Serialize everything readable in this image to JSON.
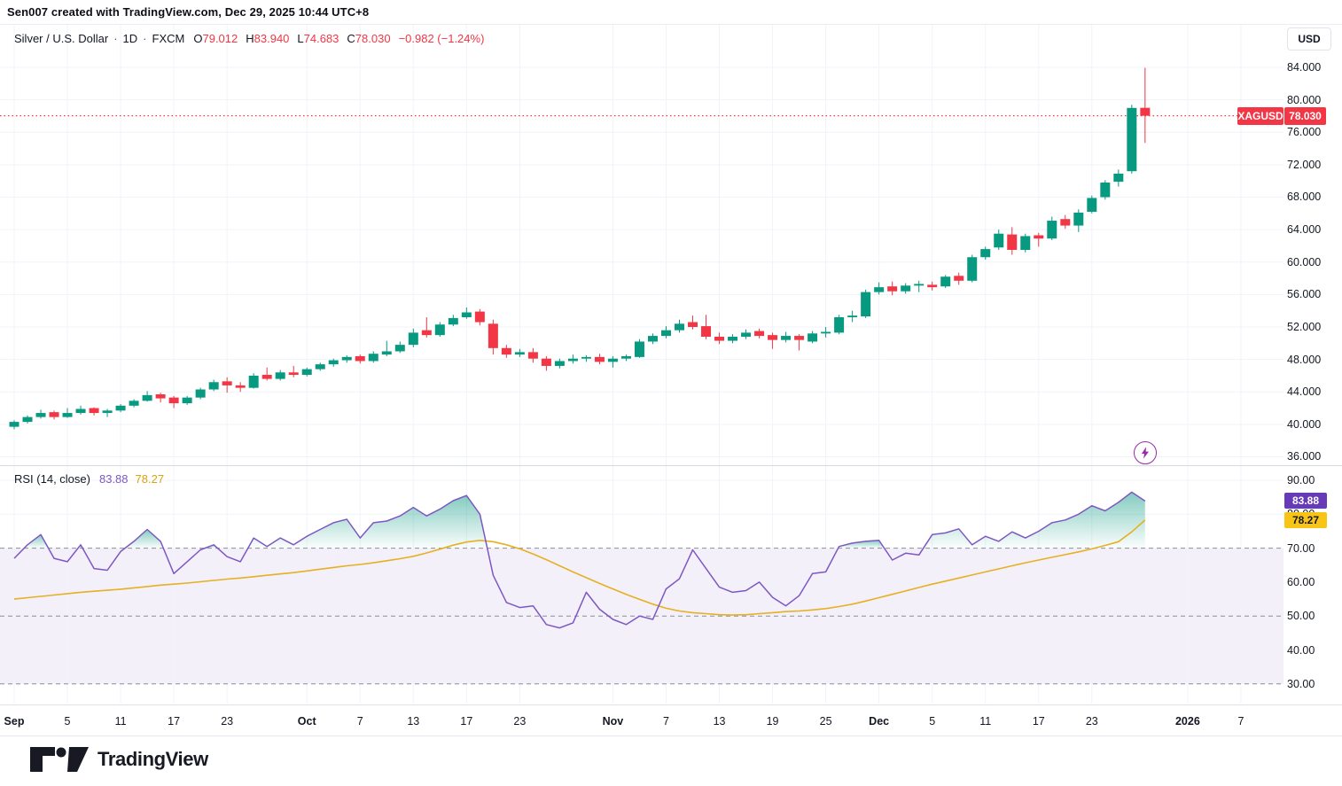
{
  "attribution": "Sen007 created with TradingView.com, Dec 29, 2025 10:44 UTC+8",
  "main_legend": {
    "symbol": "Silver / U.S. Dollar",
    "separator": "·",
    "interval": "1D",
    "exchange": "FXCM",
    "ohlc": [
      {
        "k": "O",
        "v": "79.012"
      },
      {
        "k": "H",
        "v": "83.940"
      },
      {
        "k": "L",
        "v": "74.683"
      },
      {
        "k": "C",
        "v": "78.030"
      }
    ],
    "change": "−0.982 (−1.24%)"
  },
  "currency_button": "USD",
  "price_axis": {
    "labels": [
      "84.000",
      "80.000",
      "76.000",
      "72.000",
      "68.000",
      "64.000",
      "60.000",
      "56.000",
      "52.000",
      "48.000",
      "44.000",
      "40.000",
      "36.000"
    ],
    "badge": {
      "symbol": "XAGUSD",
      "value": "78.030"
    }
  },
  "rsi_legend": {
    "title": "RSI (14, close)",
    "value": "83.88",
    "ma_value": "78.27"
  },
  "rsi_axis": {
    "labels": [
      "90.00",
      "80.00",
      "70.00",
      "60.00",
      "50.00",
      "40.00",
      "30.00"
    ],
    "value_badge": "83.88",
    "ma_badge": "78.27"
  },
  "time_axis": {
    "ticks": [
      {
        "label": "Sep",
        "index": 0,
        "major": true
      },
      {
        "label": "5",
        "index": 4
      },
      {
        "label": "11",
        "index": 8
      },
      {
        "label": "17",
        "index": 12
      },
      {
        "label": "23",
        "index": 16
      },
      {
        "label": "Oct",
        "index": 22,
        "major": true
      },
      {
        "label": "7",
        "index": 26
      },
      {
        "label": "13",
        "index": 30
      },
      {
        "label": "17",
        "index": 34
      },
      {
        "label": "23",
        "index": 38
      },
      {
        "label": "Nov",
        "index": 45,
        "major": true
      },
      {
        "label": "7",
        "index": 49
      },
      {
        "label": "13",
        "index": 53
      },
      {
        "label": "19",
        "index": 57
      },
      {
        "label": "25",
        "index": 61
      },
      {
        "label": "Dec",
        "index": 65,
        "major": true
      },
      {
        "label": "5",
        "index": 69
      },
      {
        "label": "11",
        "index": 73
      },
      {
        "label": "17",
        "index": 77
      },
      {
        "label": "23",
        "index": 81
      },
      {
        "label": "2026",
        "index": 88.2,
        "major": true
      },
      {
        "label": "7",
        "index": 92.2
      }
    ]
  },
  "logo_text": "TradingView",
  "colors": {
    "up": "#089981",
    "down": "#f23645",
    "last_price": "#f23645",
    "rsi_line": "#7e57c2",
    "rsi_ma_line": "#e6b022",
    "rsi_value_text": "#7e57c2",
    "rsi_ma_value_text": "#d8a410",
    "band_fill": "rgba(126,87,194,0.09)",
    "grid": "#f0f3fa",
    "level_dash": "#8a8d98",
    "overbought_fill_top": "rgba(8,153,129,0.5)",
    "overbought_fill_bottom": "rgba(8,153,129,0.02)"
  },
  "chart_data": {
    "type": "candlestick",
    "title": "Silver / U.S. Dollar · 1D · FXCM",
    "symbol": "XAGUSD",
    "interval": "1D",
    "last_close": 78.03,
    "price_pane": {
      "ylabel": "USD",
      "ylim": [
        35.5,
        85.5
      ],
      "grid_step": 4,
      "grid_levels": [
        84,
        80,
        76,
        72,
        68,
        64,
        60,
        56,
        52,
        48,
        44,
        40,
        36
      ],
      "candles_ohlc": [
        [
          39.7,
          40.5,
          39.4,
          40.3
        ],
        [
          40.3,
          41.1,
          40.1,
          40.9
        ],
        [
          40.9,
          41.8,
          40.7,
          41.4
        ],
        [
          41.5,
          41.7,
          40.6,
          40.9
        ],
        [
          40.9,
          42.0,
          40.8,
          41.4
        ],
        [
          41.4,
          42.3,
          41.2,
          41.9
        ],
        [
          42.0,
          42.1,
          41.1,
          41.4
        ],
        [
          41.4,
          41.9,
          40.9,
          41.7
        ],
        [
          41.7,
          42.5,
          41.5,
          42.3
        ],
        [
          42.3,
          43.1,
          42.1,
          42.9
        ],
        [
          42.9,
          44.1,
          42.8,
          43.6
        ],
        [
          43.7,
          43.9,
          42.7,
          43.2
        ],
        [
          43.3,
          43.5,
          42.0,
          42.6
        ],
        [
          42.6,
          43.5,
          42.4,
          43.3
        ],
        [
          43.3,
          44.5,
          43.1,
          44.3
        ],
        [
          44.3,
          45.5,
          44.1,
          45.2
        ],
        [
          45.3,
          45.8,
          43.9,
          44.8
        ],
        [
          44.8,
          45.2,
          44.0,
          44.5
        ],
        [
          44.5,
          46.3,
          44.4,
          46.0
        ],
        [
          46.1,
          47.0,
          45.4,
          45.6
        ],
        [
          45.6,
          46.7,
          45.4,
          46.4
        ],
        [
          46.4,
          47.2,
          45.8,
          46.1
        ],
        [
          46.1,
          47.0,
          45.9,
          46.8
        ],
        [
          46.8,
          47.6,
          46.6,
          47.4
        ],
        [
          47.4,
          48.1,
          47.1,
          47.9
        ],
        [
          47.9,
          48.5,
          47.6,
          48.3
        ],
        [
          48.4,
          48.6,
          47.5,
          47.8
        ],
        [
          47.8,
          49.0,
          47.6,
          48.7
        ],
        [
          48.6,
          50.3,
          48.4,
          49.0
        ],
        [
          49.0,
          50.2,
          48.8,
          49.8
        ],
        [
          49.8,
          51.8,
          49.5,
          51.3
        ],
        [
          51.6,
          53.2,
          50.7,
          51.0
        ],
        [
          51.0,
          52.6,
          50.8,
          52.3
        ],
        [
          52.3,
          53.5,
          52.1,
          53.1
        ],
        [
          53.2,
          54.4,
          53.0,
          53.8
        ],
        [
          53.9,
          54.2,
          52.2,
          52.6
        ],
        [
          52.4,
          52.9,
          48.6,
          49.4
        ],
        [
          49.4,
          49.8,
          48.2,
          48.6
        ],
        [
          48.6,
          49.3,
          48.3,
          48.9
        ],
        [
          48.9,
          49.4,
          47.6,
          48.1
        ],
        [
          48.1,
          48.4,
          46.6,
          47.2
        ],
        [
          47.2,
          48.1,
          46.9,
          47.8
        ],
        [
          47.8,
          48.6,
          47.5,
          48.1
        ],
        [
          48.1,
          48.5,
          47.7,
          48.3
        ],
        [
          48.3,
          48.7,
          47.4,
          47.7
        ],
        [
          47.7,
          48.4,
          47.0,
          48.1
        ],
        [
          48.1,
          48.6,
          47.8,
          48.4
        ],
        [
          48.3,
          50.5,
          48.2,
          50.2
        ],
        [
          50.2,
          51.2,
          49.9,
          50.9
        ],
        [
          50.9,
          52.1,
          50.6,
          51.6
        ],
        [
          51.6,
          52.9,
          51.3,
          52.4
        ],
        [
          52.6,
          53.4,
          51.7,
          52.0
        ],
        [
          52.1,
          53.5,
          50.5,
          50.8
        ],
        [
          50.8,
          51.3,
          49.9,
          50.3
        ],
        [
          50.3,
          51.1,
          50.0,
          50.8
        ],
        [
          50.8,
          51.7,
          50.5,
          51.3
        ],
        [
          51.5,
          51.8,
          50.6,
          50.9
        ],
        [
          51.0,
          51.3,
          49.3,
          50.4
        ],
        [
          50.4,
          51.4,
          50.1,
          50.9
        ],
        [
          50.9,
          51.1,
          49.1,
          50.4
        ],
        [
          50.2,
          51.5,
          50.0,
          51.2
        ],
        [
          51.2,
          52.0,
          50.7,
          51.4
        ],
        [
          51.3,
          53.5,
          51.1,
          53.2
        ],
        [
          53.2,
          54.0,
          52.6,
          53.4
        ],
        [
          53.3,
          56.6,
          53.1,
          56.3
        ],
        [
          56.3,
          57.5,
          56.0,
          56.9
        ],
        [
          57.0,
          57.6,
          55.9,
          56.4
        ],
        [
          56.4,
          57.4,
          56.1,
          57.1
        ],
        [
          57.1,
          57.7,
          56.3,
          57.3
        ],
        [
          57.2,
          57.6,
          56.5,
          56.9
        ],
        [
          57.0,
          58.4,
          56.8,
          58.2
        ],
        [
          58.3,
          58.7,
          57.2,
          57.7
        ],
        [
          57.7,
          60.9,
          57.5,
          60.6
        ],
        [
          60.6,
          61.9,
          60.3,
          61.6
        ],
        [
          61.8,
          64.0,
          61.5,
          63.5
        ],
        [
          63.4,
          64.3,
          60.9,
          61.5
        ],
        [
          61.5,
          63.5,
          61.2,
          63.2
        ],
        [
          63.3,
          63.6,
          61.9,
          62.9
        ],
        [
          62.9,
          65.6,
          62.7,
          65.1
        ],
        [
          65.3,
          65.8,
          64.1,
          64.5
        ],
        [
          64.5,
          66.5,
          63.7,
          66.1
        ],
        [
          66.2,
          68.2,
          66.0,
          67.9
        ],
        [
          68.0,
          70.1,
          67.7,
          69.8
        ],
        [
          69.9,
          71.4,
          69.3,
          70.9
        ],
        [
          71.2,
          79.4,
          70.9,
          79.0
        ],
        [
          79.012,
          83.94,
          74.683,
          78.03
        ]
      ]
    },
    "rsi_pane": {
      "indicator": "RSI (14, close)",
      "ylim": [
        26,
        92
      ],
      "levels": {
        "overbought": 70,
        "middle": 50,
        "oversold": 30
      },
      "light_grid_levels": [
        90,
        80,
        60,
        40
      ],
      "rsi_current": 83.88,
      "rsi_ma_current": 78.27,
      "rsi": [
        67,
        71,
        74,
        67,
        66,
        71,
        64,
        63.5,
        69,
        72,
        75.5,
        72,
        62.5,
        66,
        69.5,
        71,
        67.5,
        66,
        73,
        70.5,
        73,
        71,
        73.5,
        75.5,
        77.5,
        78.5,
        73,
        77.5,
        78,
        79.5,
        82,
        79.5,
        81.5,
        84,
        85.5,
        80,
        62,
        54,
        52.5,
        53,
        47.5,
        46.5,
        48,
        57,
        52,
        49,
        47.5,
        50,
        49,
        58,
        61,
        69.5,
        64,
        58.5,
        57,
        57.5,
        60,
        55.5,
        53,
        56,
        62.5,
        63,
        70.5,
        71.5,
        72,
        72.3,
        66.5,
        68.5,
        68,
        74,
        74.5,
        75.7,
        71,
        73.5,
        72,
        74.8,
        73,
        75,
        77.5,
        78.3,
        80,
        82.5,
        81,
        83.5,
        86.5,
        83.88
      ],
      "rsi_ma": [
        55.0,
        55.4,
        55.8,
        56.2,
        56.6,
        57.0,
        57.3,
        57.6,
        57.9,
        58.3,
        58.7,
        59.1,
        59.4,
        59.7,
        60.1,
        60.5,
        60.9,
        61.2,
        61.6,
        62.0,
        62.4,
        62.8,
        63.3,
        63.8,
        64.3,
        64.8,
        65.2,
        65.7,
        66.3,
        66.9,
        67.6,
        68.6,
        69.7,
        70.9,
        71.8,
        72.3,
        71.9,
        71.0,
        69.8,
        68.3,
        66.6,
        64.8,
        63.0,
        61.3,
        59.6,
        58.0,
        56.4,
        54.9,
        53.5,
        52.3,
        51.5,
        51.0,
        50.7,
        50.4,
        50.3,
        50.4,
        50.7,
        51.0,
        51.3,
        51.5,
        51.8,
        52.2,
        52.8,
        53.5,
        54.4,
        55.4,
        56.4,
        57.4,
        58.4,
        59.4,
        60.3,
        61.2,
        62.1,
        63.0,
        63.9,
        64.8,
        65.7,
        66.5,
        67.3,
        68.1,
        68.9,
        69.8,
        70.8,
        71.9,
        74.8,
        78.27
      ]
    }
  }
}
